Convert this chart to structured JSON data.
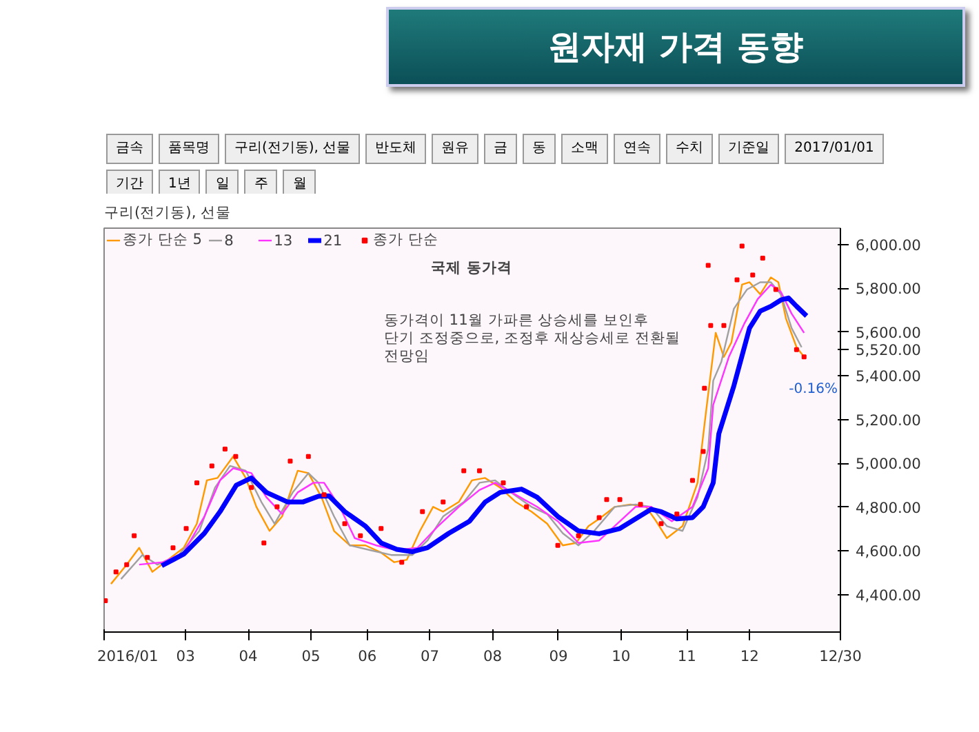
{
  "chart_data": {
    "type": "line",
    "title": "원자재 가격 동향",
    "subtitle": "구리(전기동), 선물",
    "xlim": [
      1.7,
      13.45
    ],
    "xticks": [
      {
        "value": 1.7,
        "label": "2016/01"
      },
      {
        "value": 3,
        "label": "03"
      },
      {
        "value": 4,
        "label": "04"
      },
      {
        "value": 5,
        "label": "05"
      },
      {
        "value": 5.9,
        "label": "06"
      },
      {
        "value": 6.9,
        "label": "07"
      },
      {
        "value": 7.9,
        "label": "08"
      },
      {
        "value": 8.95,
        "label": "09"
      },
      {
        "value": 9.95,
        "label": "10"
      },
      {
        "value": 11.0,
        "label": "11"
      },
      {
        "value": 12.0,
        "label": "12"
      },
      {
        "value": 13.45,
        "label": "12/30"
      }
    ],
    "ylim": [
      4230,
      6075
    ],
    "yticks": [
      {
        "value": 4400,
        "label": "4,400.00"
      },
      {
        "value": 4600,
        "label": "4,600.00"
      },
      {
        "value": 4800,
        "label": "4,800.00"
      },
      {
        "value": 5000,
        "label": "5,000.00"
      },
      {
        "value": 5200,
        "label": "5,200.00"
      },
      {
        "value": 5400,
        "label": "5,400.00"
      },
      {
        "value": 5520,
        "label": "5,520.00"
      },
      {
        "value": 5600,
        "label": "5,600.00"
      },
      {
        "value": 5800,
        "label": "5,800.00"
      },
      {
        "value": 6000,
        "label": "6,000.00"
      }
    ],
    "grid": false,
    "legend": "top left",
    "marker": "none",
    "line_style": "solid",
    "series": [
      {
        "name": "종가 단순 5",
        "color": "#ff9900",
        "x": [
          1.81,
          2.06,
          2.26,
          2.47,
          2.72,
          2.97,
          3.18,
          3.34,
          3.51,
          3.76,
          3.96,
          4.13,
          4.34,
          4.54,
          4.79,
          4.96,
          5.17,
          5.37,
          5.62,
          5.87,
          6.12,
          6.33,
          6.53,
          6.74,
          6.95,
          7.11,
          7.36,
          7.57,
          7.78,
          8.02,
          8.27,
          8.52,
          8.77,
          9.02,
          9.23,
          9.43,
          9.6,
          9.85,
          10.1,
          10.35,
          10.51,
          10.68,
          10.93,
          11.17,
          11.3,
          11.46,
          11.59,
          11.71,
          11.88,
          12.0,
          12.17,
          12.34,
          12.46,
          12.58,
          12.75,
          12.87
        ],
        "values": [
          4450,
          4538,
          4615,
          4505,
          4560,
          4615,
          4725,
          4923,
          4934,
          5032,
          4934,
          4802,
          4692,
          4758,
          4967,
          4956,
          4846,
          4692,
          4626,
          4626,
          4593,
          4549,
          4560,
          4692,
          4802,
          4780,
          4824,
          4923,
          4934,
          4890,
          4824,
          4780,
          4725,
          4626,
          4637,
          4714,
          4747,
          4802,
          4813,
          4802,
          4736,
          4659,
          4714,
          4912,
          5224,
          5597,
          5487,
          5553,
          5817,
          5828,
          5773,
          5850,
          5828,
          5663,
          5531,
          5487
        ]
      },
      {
        "name": "8",
        "color": "#a0a0a0",
        "x": [
          1.97,
          2.31,
          2.55,
          2.89,
          3.22,
          3.47,
          3.71,
          3.96,
          4.21,
          4.42,
          4.71,
          4.96,
          5.12,
          5.37,
          5.62,
          5.95,
          6.28,
          6.62,
          6.86,
          7.11,
          7.44,
          7.69,
          7.94,
          8.19,
          8.52,
          8.77,
          9.02,
          9.27,
          9.52,
          9.85,
          10.18,
          10.43,
          10.68,
          10.93,
          11.17,
          11.34,
          11.42,
          11.55,
          11.75,
          11.96,
          12.17,
          12.34,
          12.5,
          12.67,
          12.83
        ],
        "values": [
          4472,
          4582,
          4538,
          4582,
          4692,
          4890,
          4989,
          4967,
          4824,
          4725,
          4868,
          4956,
          4912,
          4758,
          4626,
          4604,
          4582,
          4582,
          4648,
          4758,
          4824,
          4912,
          4923,
          4868,
          4802,
          4769,
          4681,
          4626,
          4692,
          4802,
          4813,
          4802,
          4714,
          4692,
          4846,
          5066,
          5378,
          5465,
          5707,
          5795,
          5828,
          5828,
          5773,
          5619,
          5531
        ]
      },
      {
        "name": "13",
        "color": "#ff33ff",
        "x": [
          2.26,
          2.64,
          2.97,
          3.3,
          3.55,
          3.76,
          4.05,
          4.29,
          4.54,
          4.79,
          5.04,
          5.21,
          5.46,
          5.7,
          6.04,
          6.37,
          6.7,
          7.03,
          7.36,
          7.69,
          7.94,
          8.27,
          8.61,
          8.94,
          9.27,
          9.6,
          9.93,
          10.18,
          10.43,
          10.76,
          11.09,
          11.34,
          11.42,
          11.67,
          11.92,
          12.13,
          12.34,
          12.5,
          12.67,
          12.87
        ],
        "values": [
          4538,
          4549,
          4593,
          4758,
          4923,
          4978,
          4956,
          4846,
          4769,
          4868,
          4912,
          4912,
          4802,
          4659,
          4626,
          4604,
          4615,
          4714,
          4802,
          4879,
          4912,
          4857,
          4802,
          4736,
          4637,
          4648,
          4736,
          4802,
          4802,
          4736,
          4802,
          4978,
          5268,
          5487,
          5641,
          5751,
          5817,
          5784,
          5685,
          5597
        ]
      },
      {
        "name": "21",
        "color": "#0000ff",
        "x": [
          2.62,
          2.97,
          3.3,
          3.55,
          3.81,
          4.05,
          4.29,
          4.63,
          4.87,
          5.12,
          5.29,
          5.54,
          5.87,
          6.12,
          6.37,
          6.62,
          6.86,
          7.2,
          7.53,
          7.78,
          8.02,
          8.36,
          8.61,
          8.94,
          9.27,
          9.6,
          9.93,
          10.18,
          10.43,
          10.59,
          10.84,
          11.09,
          11.26,
          11.42,
          11.51,
          11.75,
          12.0,
          12.17,
          12.34,
          12.5,
          12.62,
          12.75,
          12.91
        ],
        "values": [
          4533,
          4586,
          4681,
          4780,
          4901,
          4934,
          4868,
          4824,
          4824,
          4850,
          4852,
          4780,
          4714,
          4637,
          4608,
          4597,
          4615,
          4681,
          4736,
          4824,
          4868,
          4883,
          4846,
          4758,
          4692,
          4679,
          4703,
          4747,
          4791,
          4780,
          4747,
          4753,
          4802,
          4912,
          5136,
          5355,
          5619,
          5696,
          5718,
          5747,
          5756,
          5718,
          5674
        ]
      },
      {
        "name": "종가 단순",
        "type": "scatter",
        "marker": "square",
        "color": "#ff0000",
        "x": [
          1.72,
          1.89,
          2.06,
          2.18,
          2.39,
          2.8,
          3.01,
          3.18,
          3.42,
          3.63,
          3.8,
          4.05,
          4.25,
          4.46,
          4.67,
          4.96,
          5.21,
          5.54,
          5.79,
          6.12,
          6.45,
          6.78,
          7.11,
          7.44,
          7.69,
          8.07,
          8.44,
          8.94,
          9.27,
          9.6,
          9.72,
          9.93,
          10.26,
          10.59,
          10.84,
          11.09,
          11.26,
          11.28,
          11.34,
          11.38,
          11.59,
          11.8,
          11.88,
          12.05,
          12.21,
          12.42,
          12.75,
          12.87
        ],
        "values": [
          4373,
          4505,
          4538,
          4670,
          4571,
          4615,
          4703,
          4912,
          4989,
          5066,
          5032,
          4890,
          4637,
          4802,
          5011,
          5032,
          4857,
          4725,
          4670,
          4703,
          4549,
          4780,
          4824,
          4967,
          4967,
          4912,
          4802,
          4626,
          4670,
          4753,
          4835,
          4835,
          4813,
          4725,
          4769,
          4923,
          5055,
          5344,
          5905,
          5630,
          5630,
          5839,
          5993,
          5861,
          5938,
          5795,
          5520,
          5487
        ]
      }
    ],
    "annotations": [
      "국제 동가격",
      "동가격이 11월 가파른 상승세를 보인후",
      "단기 조정중으로, 조정후 재상승세로 전환될",
      "전망임",
      "-0.16%",
      "금속",
      "품목명",
      "구리(전기동), 선물",
      "반도체",
      "원유",
      "금",
      "동",
      "소맥",
      "연속",
      "수치",
      "기준일",
      "2017/01/01",
      "기간",
      "1년",
      "일",
      "주",
      "월"
    ]
  }
}
